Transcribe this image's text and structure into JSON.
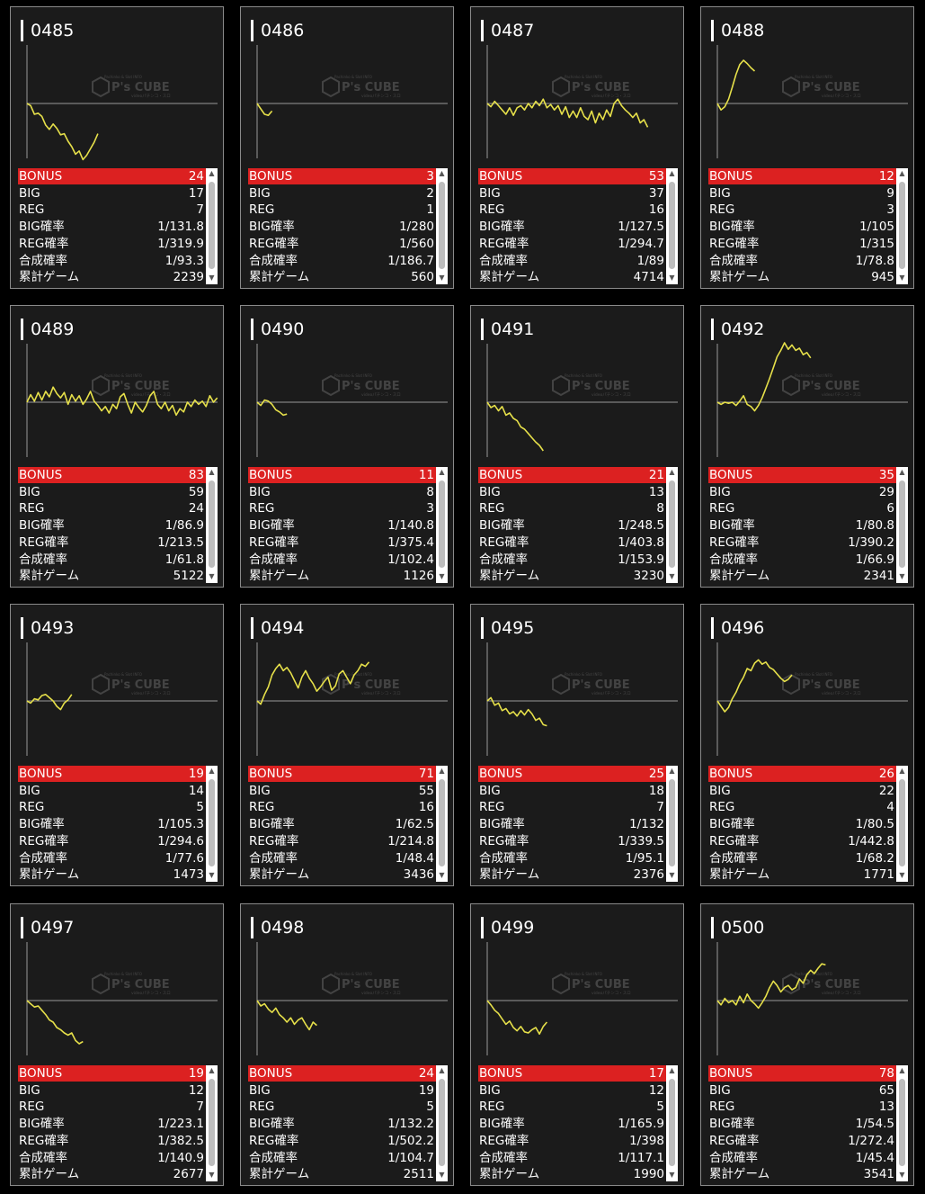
{
  "labels": {
    "bonus": "BONUS",
    "big": "BIG",
    "reg": "REG",
    "big_rate": "BIG確率",
    "reg_rate": "REG確率",
    "combined_rate": "合成確率",
    "total_games": "累計ゲーム"
  },
  "watermark": {
    "top": "Pachinko & Slot INFO",
    "main": "P's CUBE",
    "sub": "videoパチンコ・スロ"
  },
  "colors": {
    "bonus_bar": "#dc2121",
    "graph_line": "#e6e04a",
    "card_bg": "#1b1b1b"
  },
  "machines": [
    {
      "id": "0485",
      "bonus": "24",
      "big": "17",
      "reg": "7",
      "big_rate": "1/131.8",
      "reg_rate": "1/319.9",
      "combined_rate": "1/93.3",
      "total_games": "2239",
      "graph": [
        0,
        -2,
        -10,
        -9,
        -12,
        -20,
        -24,
        -19,
        -23,
        -29,
        -28,
        -35,
        -40,
        -47,
        -44,
        -52,
        -48,
        -42,
        -36,
        -28
      ]
    },
    {
      "id": "0486",
      "bonus": "3",
      "big": "2",
      "reg": "1",
      "big_rate": "1/280",
      "reg_rate": "1/560",
      "combined_rate": "1/186.7",
      "total_games": "560",
      "graph": [
        0,
        -5,
        -10,
        -11,
        -7
      ]
    },
    {
      "id": "0487",
      "bonus": "53",
      "big": "37",
      "reg": "16",
      "big_rate": "1/127.5",
      "reg_rate": "1/294.7",
      "combined_rate": "1/89",
      "total_games": "4714",
      "graph": [
        0,
        -3,
        2,
        -2,
        -6,
        -10,
        -4,
        -11,
        -4,
        -2,
        -6,
        0,
        -4,
        2,
        -2,
        4,
        -4,
        -1,
        -6,
        -2,
        -10,
        -3,
        -13,
        -7,
        -13,
        -4,
        -12,
        -15,
        -7,
        -18,
        -9,
        -15,
        -6,
        -12,
        0,
        4,
        -2,
        -6,
        -9,
        -13,
        -9,
        -18,
        -15,
        -22
      ]
    },
    {
      "id": "0488",
      "bonus": "12",
      "big": "9",
      "reg": "3",
      "big_rate": "1/105",
      "reg_rate": "1/315",
      "combined_rate": "1/78.8",
      "total_games": "945",
      "graph": [
        0,
        -6,
        -3,
        4,
        15,
        27,
        36,
        40,
        37,
        33,
        30
      ]
    },
    {
      "id": "0489",
      "bonus": "83",
      "big": "59",
      "reg": "24",
      "big_rate": "1/86.9",
      "reg_rate": "1/213.5",
      "combined_rate": "1/61.8",
      "total_games": "5122",
      "graph": [
        0,
        7,
        1,
        9,
        2,
        10,
        5,
        14,
        8,
        4,
        9,
        -2,
        7,
        1,
        6,
        -2,
        3,
        10,
        1,
        -3,
        -8,
        -4,
        -10,
        -2,
        -6,
        5,
        8,
        -2,
        -10,
        0,
        -5,
        -9,
        -3,
        6,
        10,
        -2,
        -6,
        0,
        -8,
        -3,
        -12,
        -6,
        -9,
        0,
        -4,
        2,
        -2,
        1,
        -4,
        6,
        0,
        4
      ]
    },
    {
      "id": "0490",
      "bonus": "11",
      "big": "8",
      "reg": "3",
      "big_rate": "1/140.8",
      "reg_rate": "1/375.4",
      "combined_rate": "1/102.4",
      "total_games": "1126",
      "graph": [
        0,
        -3,
        2,
        1,
        -2,
        -7,
        -9,
        -12,
        -11
      ]
    },
    {
      "id": "0491",
      "bonus": "21",
      "big": "13",
      "reg": "8",
      "big_rate": "1/248.5",
      "reg_rate": "1/403.8",
      "combined_rate": "1/153.9",
      "total_games": "3230",
      "graph": [
        0,
        -5,
        -3,
        -8,
        -4,
        -12,
        -10,
        -15,
        -17,
        -23,
        -25,
        -29,
        -33,
        -37,
        -40,
        -45
      ]
    },
    {
      "id": "0492",
      "bonus": "35",
      "big": "29",
      "reg": "6",
      "big_rate": "1/80.8",
      "reg_rate": "1/390.2",
      "combined_rate": "1/66.9",
      "total_games": "2341",
      "graph": [
        0,
        -2,
        0,
        -1,
        0,
        -3,
        1,
        6,
        -2,
        -4,
        -8,
        -3,
        4,
        13,
        22,
        32,
        42,
        48,
        55,
        49,
        53,
        48,
        50,
        44,
        46,
        41
      ]
    },
    {
      "id": "0493",
      "bonus": "19",
      "big": "14",
      "reg": "5",
      "big_rate": "1/105.3",
      "reg_rate": "1/294.6",
      "combined_rate": "1/77.6",
      "total_games": "1473",
      "graph": [
        0,
        -2,
        2,
        1,
        5,
        6,
        3,
        0,
        -5,
        -8,
        -2,
        1,
        6
      ]
    },
    {
      "id": "0494",
      "bonus": "71",
      "big": "55",
      "reg": "16",
      "big_rate": "1/62.5",
      "reg_rate": "1/214.8",
      "combined_rate": "1/48.4",
      "total_games": "3436",
      "graph": [
        0,
        -3,
        6,
        13,
        24,
        30,
        34,
        28,
        31,
        26,
        19,
        12,
        22,
        28,
        21,
        16,
        9,
        13,
        18,
        22,
        10,
        14,
        25,
        28,
        22,
        16,
        24,
        28,
        34,
        32,
        36
      ]
    },
    {
      "id": "0495",
      "bonus": "25",
      "big": "18",
      "reg": "7",
      "big_rate": "1/132",
      "reg_rate": "1/339.5",
      "combined_rate": "1/95.1",
      "total_games": "2376",
      "graph": [
        0,
        3,
        -4,
        -2,
        -9,
        -7,
        -12,
        -10,
        -14,
        -9,
        -13,
        -8,
        -12,
        -18,
        -16,
        -22,
        -23
      ]
    },
    {
      "id": "0496",
      "bonus": "26",
      "big": "22",
      "reg": "4",
      "big_rate": "1/80.5",
      "reg_rate": "1/442.8",
      "combined_rate": "1/68.2",
      "total_games": "1771",
      "graph": [
        0,
        -5,
        -10,
        -6,
        2,
        8,
        16,
        22,
        30,
        28,
        35,
        38,
        34,
        36,
        31,
        29,
        25,
        21,
        18,
        20,
        24
      ]
    },
    {
      "id": "0497",
      "bonus": "19",
      "big": "12",
      "reg": "7",
      "big_rate": "1/223.1",
      "reg_rate": "1/382.5",
      "combined_rate": "1/140.9",
      "total_games": "2677",
      "graph": [
        0,
        -3,
        -6,
        -5,
        -9,
        -13,
        -18,
        -20,
        -25,
        -27,
        -30,
        -32,
        -30,
        -37,
        -40,
        -38
      ]
    },
    {
      "id": "0498",
      "bonus": "24",
      "big": "19",
      "reg": "5",
      "big_rate": "1/132.2",
      "reg_rate": "1/502.2",
      "combined_rate": "1/104.7",
      "total_games": "2511",
      "graph": [
        0,
        -5,
        -3,
        -8,
        -11,
        -7,
        -13,
        -16,
        -20,
        -16,
        -22,
        -18,
        -16,
        -22,
        -27,
        -20,
        -23
      ]
    },
    {
      "id": "0499",
      "bonus": "17",
      "big": "12",
      "reg": "5",
      "big_rate": "1/165.9",
      "reg_rate": "1/398",
      "combined_rate": "1/117.1",
      "total_games": "1990",
      "graph": [
        0,
        -4,
        -9,
        -12,
        -17,
        -22,
        -19,
        -25,
        -28,
        -24,
        -29,
        -30,
        -27,
        -25,
        -31,
        -24,
        -20
      ]
    },
    {
      "id": "0500",
      "bonus": "78",
      "big": "65",
      "reg": "13",
      "big_rate": "1/54.5",
      "reg_rate": "1/272.4",
      "combined_rate": "1/45.4",
      "total_games": "3541",
      "graph": [
        0,
        -4,
        2,
        -2,
        0,
        -4,
        4,
        -2,
        6,
        0,
        -3,
        -7,
        -2,
        4,
        12,
        18,
        14,
        8,
        12,
        14,
        10,
        12,
        20,
        16,
        24,
        28,
        25,
        30,
        34,
        33
      ]
    }
  ]
}
